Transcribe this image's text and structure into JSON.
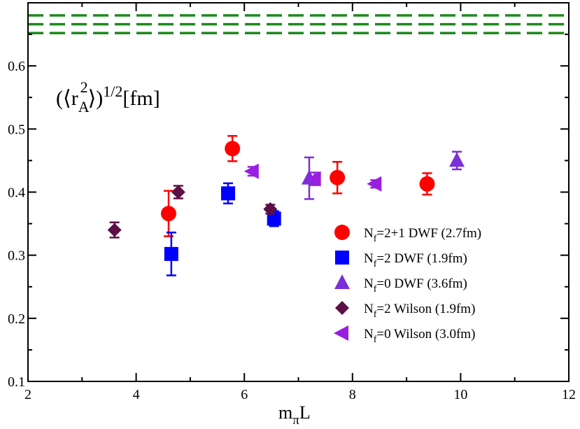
{
  "chart_data": {
    "type": "scatter",
    "title": "",
    "xlabel": "m_πL",
    "ylabel": "",
    "annotation": "(⟨r_A^2⟩)^1/2[fm]",
    "xlim": [
      2,
      12
    ],
    "ylim": [
      0.1,
      0.7
    ],
    "x_ticks": [
      2,
      4,
      6,
      8,
      10,
      12
    ],
    "y_ticks": [
      0.1,
      0.2,
      0.3,
      0.4,
      0.5,
      0.6
    ],
    "grid": false,
    "legend_position": "lower-right",
    "reference_lines": {
      "style": "dashed",
      "color": "#1b8a1b",
      "values": [
        0.652,
        0.666,
        0.68
      ]
    },
    "series": [
      {
        "name": "N_f=2+1 DWF (2.7fm)",
        "legend_main": "N",
        "legend_sub": "f",
        "legend_rest": "=2+1 DWF (2.7fm)",
        "marker": "circle",
        "color": "#ff0000",
        "points": [
          {
            "x": 4.6,
            "y": 0.366,
            "err": 0.036
          },
          {
            "x": 5.78,
            "y": 0.469,
            "err": 0.02
          },
          {
            "x": 7.72,
            "y": 0.423,
            "err": 0.025
          },
          {
            "x": 9.38,
            "y": 0.413,
            "err": 0.017
          }
        ]
      },
      {
        "name": "N_f=2 DWF (1.9fm)",
        "legend_main": "N",
        "legend_sub": "f",
        "legend_rest": "=2 DWF (1.9fm)",
        "marker": "square",
        "color": "#0000ff",
        "points": [
          {
            "x": 4.65,
            "y": 0.302,
            "err": 0.034
          },
          {
            "x": 5.7,
            "y": 0.398,
            "err": 0.016
          },
          {
            "x": 6.55,
            "y": 0.358,
            "err": 0.012
          }
        ]
      },
      {
        "name": "N_f=0 DWF (3.6fm)",
        "legend_main": "N",
        "legend_sub": "f",
        "legend_rest": "=0 DWF (3.6fm)",
        "marker": "triangle-up",
        "color": "#7b2fd6",
        "points": [
          {
            "x": 7.2,
            "y": 0.422,
            "err": 0.033
          },
          {
            "x": 9.93,
            "y": 0.45,
            "err": 0.014
          }
        ]
      },
      {
        "name": "N_f=2 Wilson (1.9fm)",
        "legend_main": "N",
        "legend_sub": "f",
        "legend_rest": "=2 Wilson (1.9fm)",
        "marker": "diamond",
        "color": "#5b0f45",
        "points": [
          {
            "x": 3.6,
            "y": 0.34,
            "err": 0.012
          },
          {
            "x": 4.78,
            "y": 0.4,
            "err": 0.01
          },
          {
            "x": 6.48,
            "y": 0.373,
            "err": 0.007
          }
        ]
      },
      {
        "name": "N_f=0 Wilson (3.0fm)",
        "legend_main": "N",
        "legend_sub": "f",
        "legend_rest": "=0 Wilson (3.0fm)",
        "marker": "triangle-left",
        "color": "#9a1ee0",
        "points": [
          {
            "x": 6.15,
            "y": 0.433,
            "err": 0.007
          },
          {
            "x": 7.3,
            "y": 0.421,
            "err": 0.01
          },
          {
            "x": 8.42,
            "y": 0.413,
            "err": 0.006
          }
        ]
      }
    ]
  }
}
